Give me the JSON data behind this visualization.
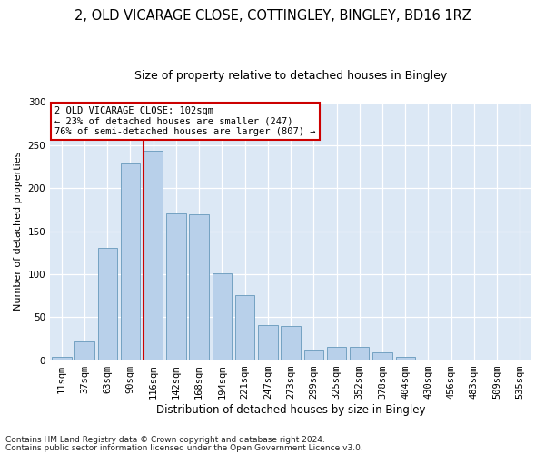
{
  "title1": "2, OLD VICARAGE CLOSE, COTTINGLEY, BINGLEY, BD16 1RZ",
  "title2": "Size of property relative to detached houses in Bingley",
  "xlabel": "Distribution of detached houses by size in Bingley",
  "ylabel": "Number of detached properties",
  "bar_labels": [
    "11sqm",
    "37sqm",
    "63sqm",
    "90sqm",
    "116sqm",
    "142sqm",
    "168sqm",
    "194sqm",
    "221sqm",
    "247sqm",
    "273sqm",
    "299sqm",
    "325sqm",
    "352sqm",
    "378sqm",
    "404sqm",
    "430sqm",
    "456sqm",
    "483sqm",
    "509sqm",
    "535sqm"
  ],
  "bar_values": [
    4,
    22,
    131,
    229,
    244,
    171,
    170,
    101,
    76,
    41,
    40,
    11,
    15,
    15,
    9,
    4,
    1,
    0,
    1,
    0,
    1
  ],
  "bar_color": "#b8d0ea",
  "bar_edge_color": "#6699bb",
  "background_color": "#dce8f5",
  "grid_color": "#ffffff",
  "vline_color": "#cc0000",
  "annotation_text": "2 OLD VICARAGE CLOSE: 102sqm\n← 23% of detached houses are smaller (247)\n76% of semi-detached houses are larger (807) →",
  "annotation_box_color": "#ffffff",
  "annotation_box_edge": "#cc0000",
  "footer1": "Contains HM Land Registry data © Crown copyright and database right 2024.",
  "footer2": "Contains public sector information licensed under the Open Government Licence v3.0.",
  "ylim": [
    0,
    300
  ],
  "yticks": [
    0,
    50,
    100,
    150,
    200,
    250,
    300
  ],
  "title1_fontsize": 10.5,
  "title2_fontsize": 9,
  "xlabel_fontsize": 8.5,
  "ylabel_fontsize": 8,
  "tick_fontsize": 7.5,
  "footer_fontsize": 6.5,
  "annot_fontsize": 7.5
}
